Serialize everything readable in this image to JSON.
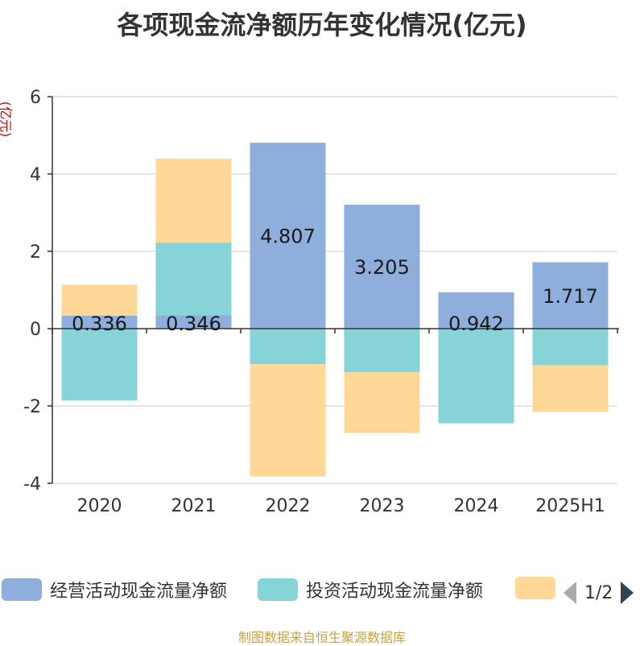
{
  "title": "各项现金流净额历年变化情况(亿元)",
  "unit_label": "(亿元)",
  "source": "制图数据来自恒生聚源数据库",
  "pager": {
    "text": "1/2"
  },
  "colors": {
    "operating": "#8eaedb",
    "investing": "#86d4d8",
    "financing": "#ffd898",
    "axis": "#333333",
    "grid": "#cccccc"
  },
  "chart_data": {
    "type": "bar",
    "stacked": true,
    "categories": [
      "2020",
      "2021",
      "2022",
      "2023",
      "2024",
      "2025H1"
    ],
    "ylim": [
      -4,
      6
    ],
    "yticks": [
      -4,
      -2,
      0,
      2,
      4,
      6
    ],
    "grid": true,
    "legend_position": "bottom",
    "series": [
      {
        "name": "经营活动现金流量净额",
        "values": [
          0.336,
          0.346,
          4.807,
          3.205,
          0.942,
          1.717
        ],
        "labels": [
          "0.336",
          "0.346",
          "4.807",
          "3.205",
          "0.942",
          "1.717"
        ]
      },
      {
        "name": "投资活动现金流量净额",
        "values": [
          -1.86,
          1.88,
          -0.92,
          -1.13,
          -2.45,
          -0.95
        ]
      },
      {
        "name": "",
        "values": [
          0.8,
          2.17,
          -2.9,
          -1.57,
          0,
          -1.2
        ]
      }
    ]
  }
}
